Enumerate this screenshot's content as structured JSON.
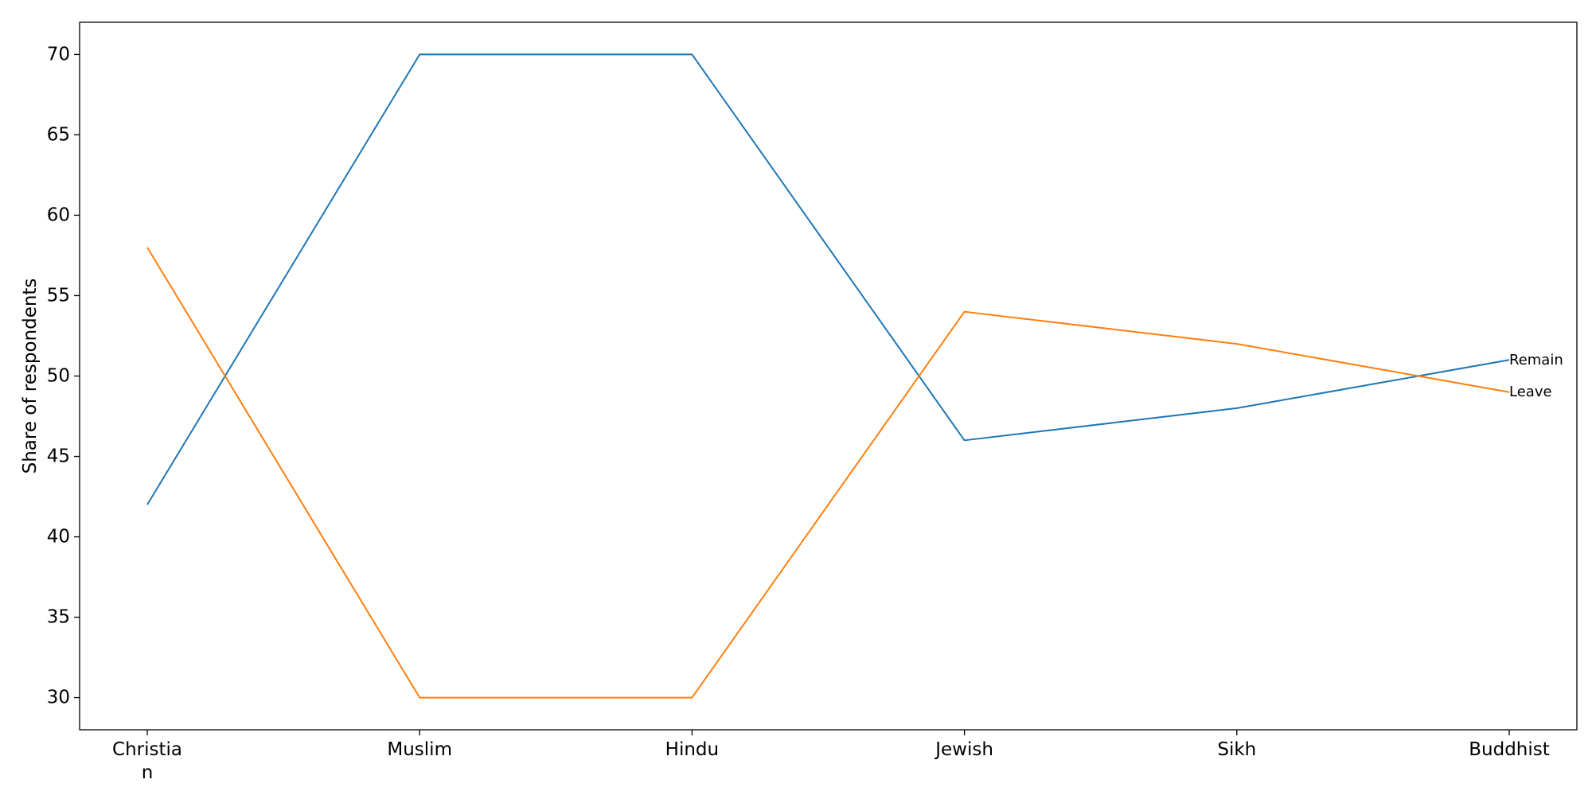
{
  "chart_data": {
    "type": "line",
    "categories": [
      "Christia\nn",
      "Muslim",
      "Hindu",
      "Jewish",
      "Sikh",
      "Buddhist"
    ],
    "ylabel": "Share of respondents",
    "ylim": [
      28,
      72
    ],
    "yticks": [
      30,
      35,
      40,
      45,
      50,
      55,
      60,
      65,
      70
    ],
    "grid": false,
    "legend": "none",
    "series": [
      {
        "name": "Remain",
        "color": "#1f77b4",
        "values": [
          42,
          70,
          70,
          46,
          48,
          51
        ]
      },
      {
        "name": "Leave",
        "color": "#ff7f0e",
        "values": [
          58,
          30,
          30,
          54,
          52,
          49
        ]
      }
    ]
  }
}
